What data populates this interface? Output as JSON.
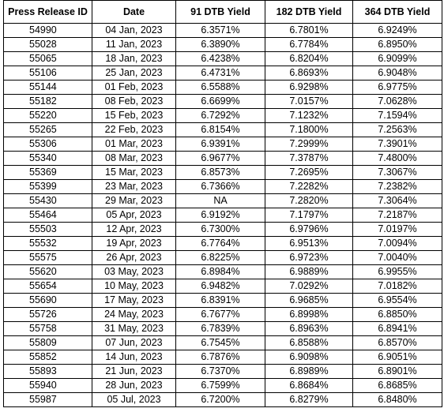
{
  "table": {
    "headers": [
      "Press Release ID",
      "Date",
      "91 DTB Yield",
      "182 DTB Yield",
      "364 DTB Yield"
    ],
    "rows": [
      [
        "54990",
        "04 Jan, 2023",
        "6.3571%",
        "6.7801%",
        "6.9249%"
      ],
      [
        "55028",
        "11 Jan, 2023",
        "6.3890%",
        "6.7784%",
        "6.8950%"
      ],
      [
        "55065",
        "18 Jan, 2023",
        "6.4238%",
        "6.8204%",
        "6.9099%"
      ],
      [
        "55106",
        "25 Jan, 2023",
        "6.4731%",
        "6.8693%",
        "6.9048%"
      ],
      [
        "55144",
        "01 Feb, 2023",
        "6.5588%",
        "6.9298%",
        "6.9775%"
      ],
      [
        "55182",
        "08 Feb, 2023",
        "6.6699%",
        "7.0157%",
        "7.0628%"
      ],
      [
        "55220",
        "15 Feb, 2023",
        "6.7292%",
        "7.1232%",
        "7.1594%"
      ],
      [
        "55265",
        "22 Feb, 2023",
        "6.8154%",
        "7.1800%",
        "7.2563%"
      ],
      [
        "55306",
        "01 Mar, 2023",
        "6.9391%",
        "7.2999%",
        "7.3901%"
      ],
      [
        "55340",
        "08 Mar, 2023",
        "6.9677%",
        "7.3787%",
        "7.4800%"
      ],
      [
        "55369",
        "15 Mar, 2023",
        "6.8573%",
        "7.2695%",
        "7.3067%"
      ],
      [
        "55399",
        "23 Mar, 2023",
        "6.7366%",
        "7.2282%",
        "7.2382%"
      ],
      [
        "55430",
        "29 Mar, 2023",
        "NA",
        "7.2820%",
        "7.3064%"
      ],
      [
        "55464",
        "05 Apr, 2023",
        "6.9192%",
        "7.1797%",
        "7.2187%"
      ],
      [
        "55503",
        "12 Apr, 2023",
        "6.7300%",
        "6.9796%",
        "7.0197%"
      ],
      [
        "55532",
        "19 Apr, 2023",
        "6.7764%",
        "6.9513%",
        "7.0094%"
      ],
      [
        "55575",
        "26 Apr, 2023",
        "6.8225%",
        "6.9723%",
        "7.0040%"
      ],
      [
        "55620",
        "03 May, 2023",
        "6.8984%",
        "6.9889%",
        "6.9955%"
      ],
      [
        "55654",
        "10 May, 2023",
        "6.9482%",
        "7.0292%",
        "7.0182%"
      ],
      [
        "55690",
        "17 May, 2023",
        "6.8391%",
        "6.9685%",
        "6.9554%"
      ],
      [
        "55726",
        "24 May, 2023",
        "6.7677%",
        "6.8998%",
        "6.8850%"
      ],
      [
        "55758",
        "31 May, 2023",
        "6.7839%",
        "6.8963%",
        "6.8941%"
      ],
      [
        "55809",
        "07 Jun, 2023",
        "6.7545%",
        "6.8588%",
        "6.8570%"
      ],
      [
        "55852",
        "14 Jun, 2023",
        "6.7876%",
        "6.9098%",
        "6.9051%"
      ],
      [
        "55893",
        "21 Jun, 2023",
        "6.7370%",
        "6.8989%",
        "6.8901%"
      ],
      [
        "55940",
        "28 Jun, 2023",
        "6.7599%",
        "6.8684%",
        "6.8685%"
      ],
      [
        "55987",
        "05 Jul, 2023",
        "6.7200%",
        "6.8279%",
        "6.8480%"
      ]
    ]
  }
}
